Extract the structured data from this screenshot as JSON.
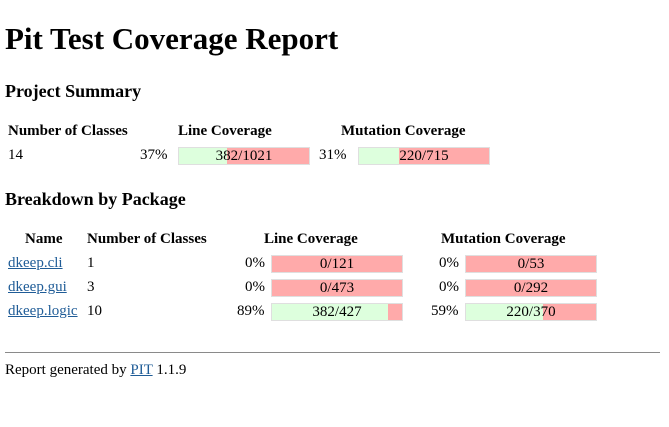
{
  "title": "Pit Test Coverage Report",
  "summary": {
    "heading": "Project Summary",
    "headers": {
      "classes": "Number of Classes",
      "line": "Line Coverage",
      "mutation": "Mutation Coverage"
    },
    "classes": "14",
    "line_pct": "37%",
    "line_label": "382/1021",
    "line_fill": 0.37,
    "mutation_pct": "31%",
    "mutation_label": "220/715",
    "mutation_fill": 0.31
  },
  "breakdown": {
    "heading": "Breakdown by Package",
    "headers": {
      "name": "Name",
      "classes": "Number of Classes",
      "line": "Line Coverage",
      "mutation": "Mutation Coverage"
    },
    "rows": [
      {
        "name": "dkeep.cli",
        "classes": "1",
        "line_pct": "0%",
        "line_label": "0/121",
        "line_fill": 0,
        "mutation_pct": "0%",
        "mutation_label": "0/53",
        "mutation_fill": 0
      },
      {
        "name": "dkeep.gui",
        "classes": "3",
        "line_pct": "0%",
        "line_label": "0/473",
        "line_fill": 0,
        "mutation_pct": "0%",
        "mutation_label": "0/292",
        "mutation_fill": 0
      },
      {
        "name": "dkeep.logic",
        "classes": "10",
        "line_pct": "89%",
        "line_label": "382/427",
        "line_fill": 0.89,
        "mutation_pct": "59%",
        "mutation_label": "220/370",
        "mutation_fill": 0.59
      }
    ]
  },
  "footer": {
    "prefix": "Report generated by",
    "link": "PIT",
    "version": "1.1.9"
  },
  "colors": {
    "covered": "#ddffdd",
    "uncovered": "#ffaaaa",
    "link": "#1f5c97"
  }
}
